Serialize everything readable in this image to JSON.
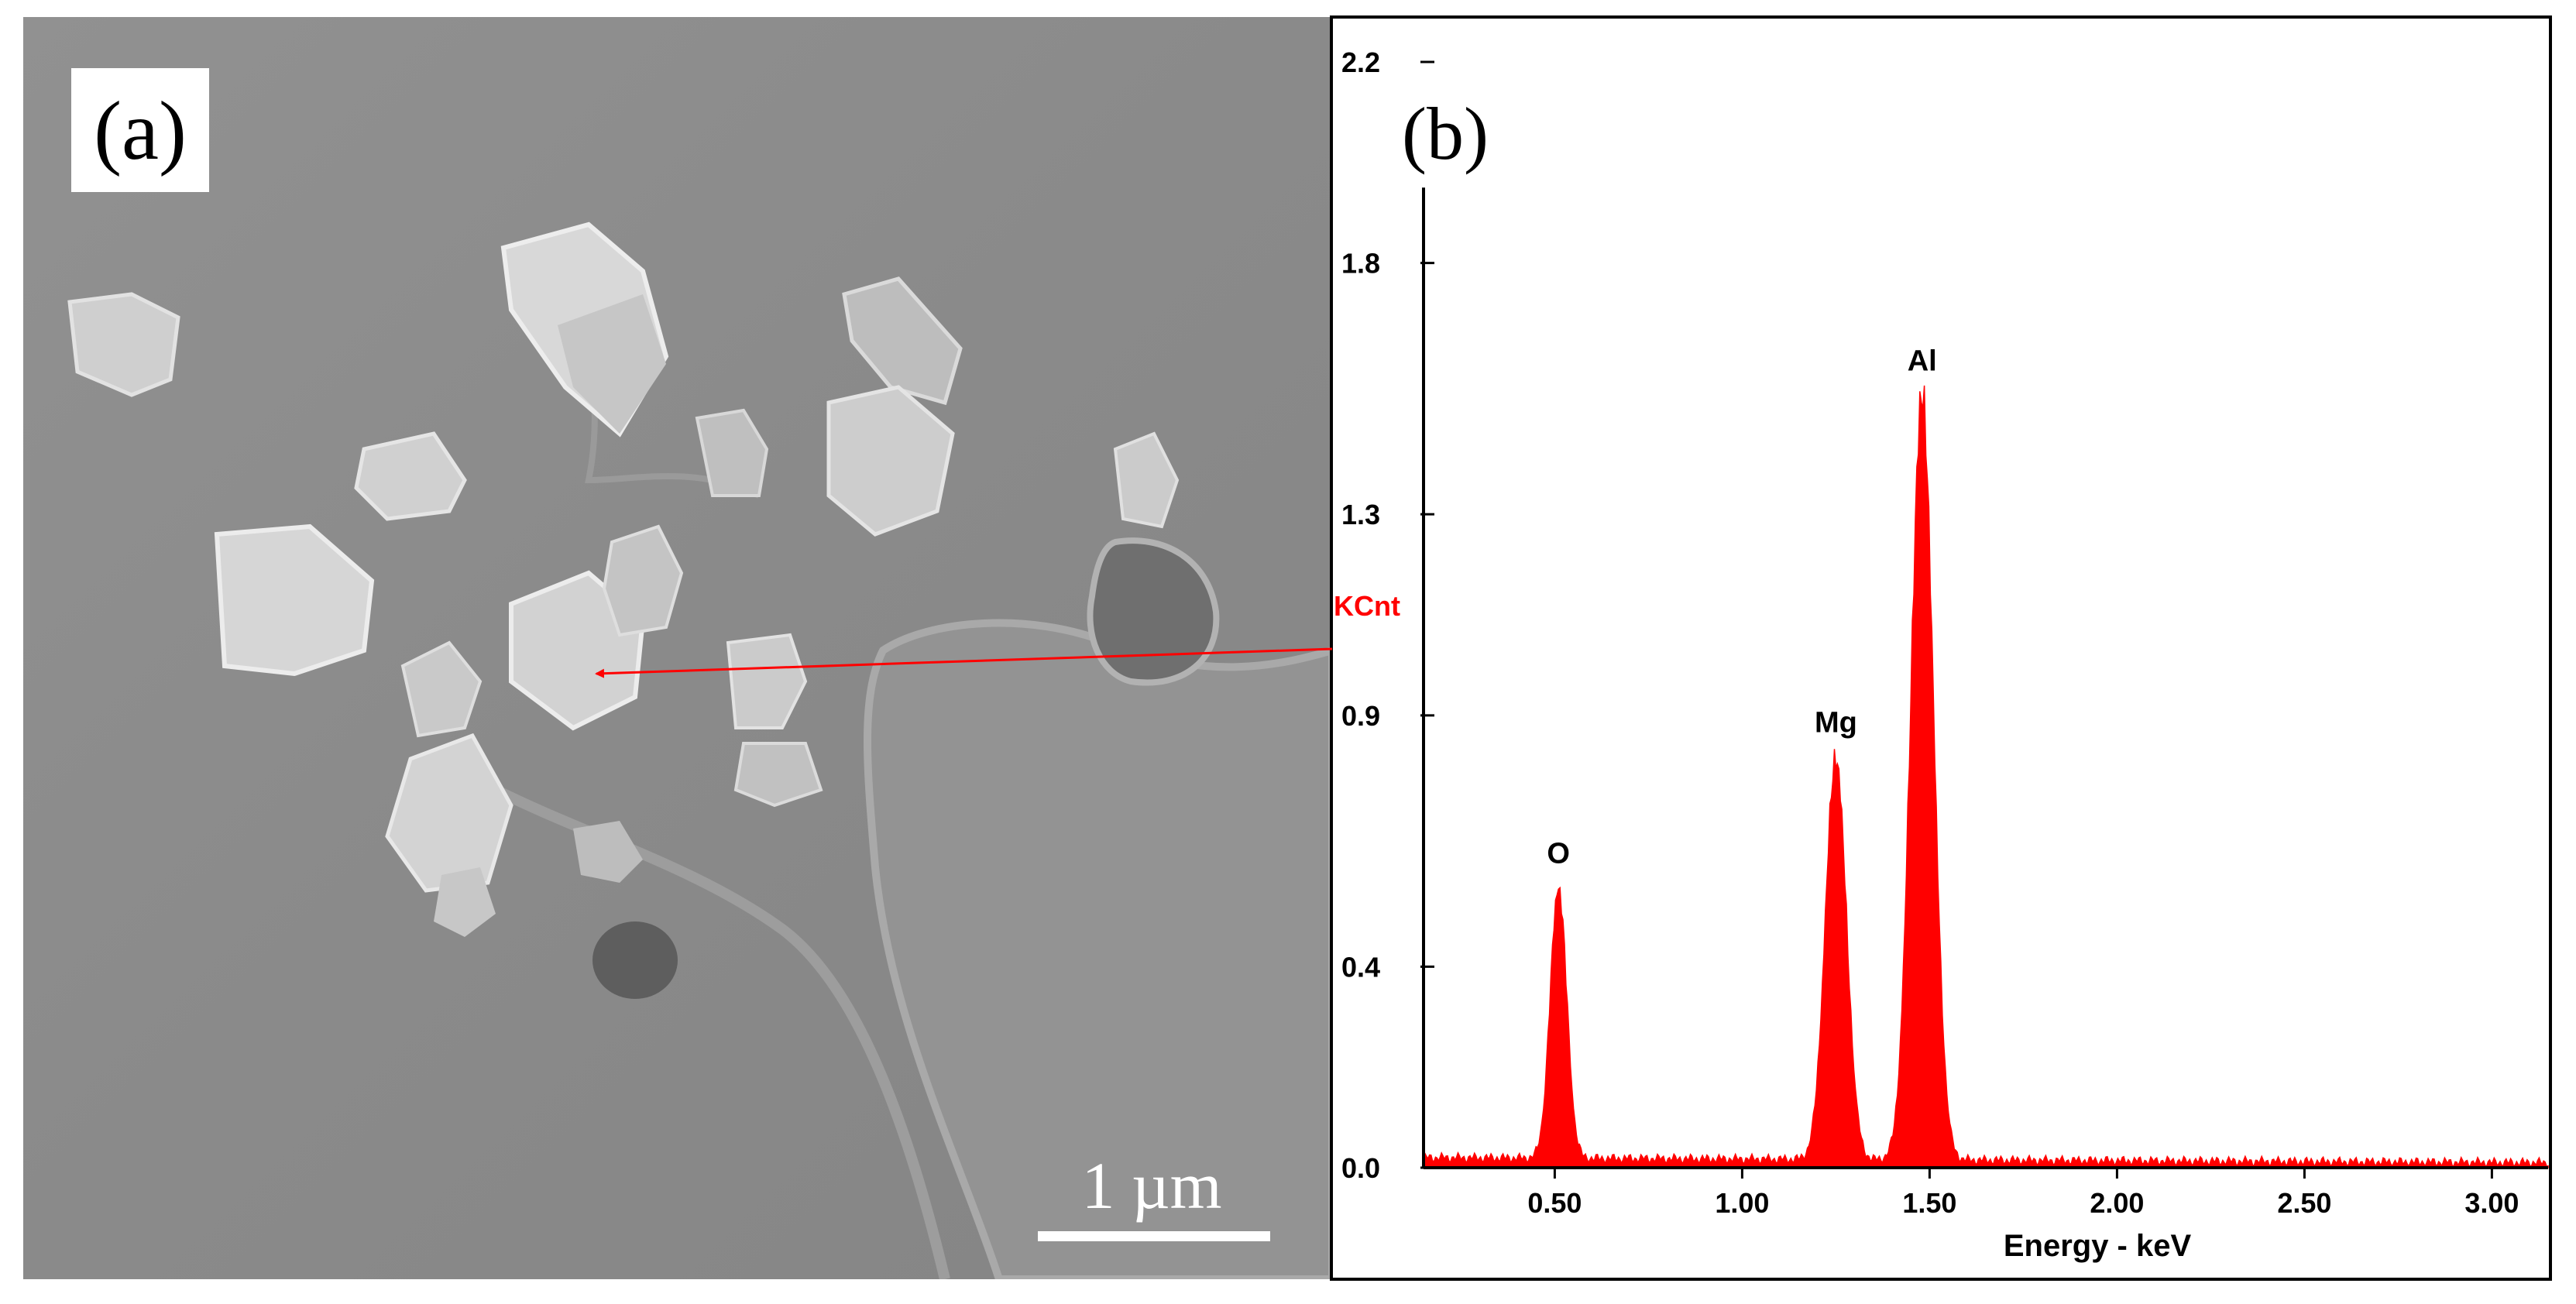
{
  "panel_a": {
    "label": "(a)",
    "scale_bar_label": "1 µm",
    "colors": {
      "background": "#8c8c8c",
      "particle": "#d4d4d4",
      "label_box": "#ffffff"
    }
  },
  "panel_b": {
    "label": "(b)",
    "annotation_label": "KCnt",
    "annotation_color": "#ff0000"
  },
  "chart_data": {
    "type": "bar",
    "title": "",
    "xlabel": "Energy - keV",
    "ylabel": "KCnt",
    "xlim": [
      0.15,
      3.15
    ],
    "ylim": [
      0.0,
      2.2
    ],
    "x_ticks": [
      {
        "value": 0.5,
        "label": "0.50"
      },
      {
        "value": 1.0,
        "label": "1.00"
      },
      {
        "value": 1.5,
        "label": "1.50"
      },
      {
        "value": 2.0,
        "label": "2.00"
      },
      {
        "value": 2.5,
        "label": "2.50"
      },
      {
        "value": 3.0,
        "label": "3.00"
      }
    ],
    "y_ticks": [
      {
        "value": 0.0,
        "label": "0.0"
      },
      {
        "value": 0.4,
        "label": "0.4"
      },
      {
        "value": 0.9,
        "label": "0.9"
      },
      {
        "value": 1.3,
        "label": "1.3"
      },
      {
        "value": 1.8,
        "label": "1.8"
      },
      {
        "value": 2.2,
        "label": "2.2"
      }
    ],
    "series_color": "#ff0000",
    "baseline_counts": 0.02,
    "peaks": [
      {
        "element": "O",
        "energy_kev": 0.51,
        "counts_kcnt": 0.56
      },
      {
        "element": "Mg",
        "energy_kev": 1.25,
        "counts_kcnt": 0.82
      },
      {
        "element": "Al",
        "energy_kev": 1.48,
        "counts_kcnt": 1.54
      }
    ]
  }
}
